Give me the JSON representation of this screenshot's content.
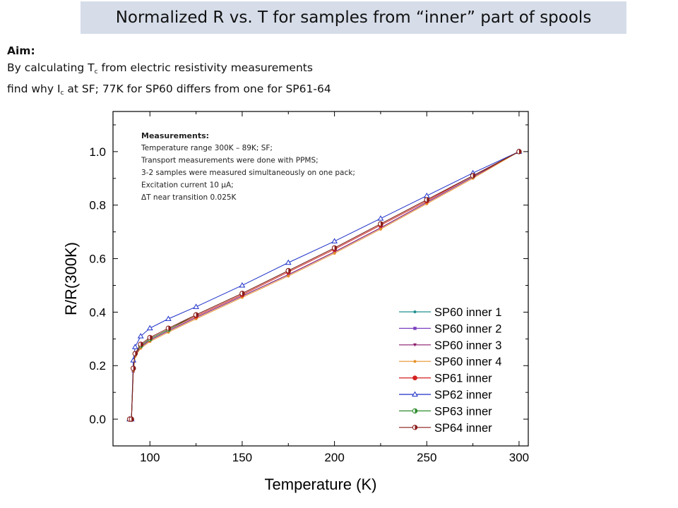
{
  "slide": {
    "title": "Normalized R vs. T for samples from “inner” part of spools"
  },
  "aim": {
    "heading": "Aim:",
    "line1_pre": "By calculating T",
    "line1_sub": "c",
    "line1_post": " from electric resistivity measurements",
    "line2_pre": "find why I",
    "line2_sub": "c",
    "line2_post": " at SF; 77K for SP60 differs from one for SP61-64"
  },
  "notes": {
    "heading": "Measurements:",
    "lines": [
      "Temperature range 300K – 89K; SF;",
      "Transport measurements were done with PPMS;",
      "3-2 samples were measured simultaneously on one pack;",
      "Excitation current 10 μA;",
      "ΔT near transition 0.025K"
    ]
  },
  "chart_data": {
    "type": "line",
    "xlabel": "Temperature (K)",
    "ylabel": "R/R(300K)",
    "xlim": [
      80,
      305
    ],
    "ylim": [
      -0.1,
      1.15
    ],
    "xticks": [
      100,
      150,
      200,
      250,
      300
    ],
    "yticks": [
      0.0,
      0.2,
      0.4,
      0.6,
      0.8,
      1.0
    ],
    "xtick_labels": [
      "100",
      "150",
      "200",
      "250",
      "300"
    ],
    "ytick_labels": [
      "0.0",
      "0.2",
      "0.4",
      "0.6",
      "0.8",
      "1.0"
    ],
    "legend_position": "lower-right",
    "grid": false,
    "x": [
      89,
      90,
      91,
      92,
      95,
      100,
      110,
      125,
      150,
      175,
      200,
      225,
      250,
      275,
      300
    ],
    "series": [
      {
        "name": "SP60 inner 1",
        "color": "#1f8f8f",
        "marker": "dot",
        "values": [
          0.0,
          0.0,
          0.18,
          0.24,
          0.27,
          0.295,
          0.33,
          0.38,
          0.46,
          0.54,
          0.625,
          0.715,
          0.81,
          0.905,
          1.0
        ]
      },
      {
        "name": "SP60 inner 2",
        "color": "#7b3fbf",
        "marker": "square",
        "values": [
          0.0,
          0.0,
          0.18,
          0.24,
          0.27,
          0.295,
          0.33,
          0.38,
          0.46,
          0.54,
          0.625,
          0.715,
          0.81,
          0.905,
          1.0
        ]
      },
      {
        "name": "SP60 inner 3",
        "color": "#8b1a6b",
        "marker": "triangle-down",
        "values": [
          0.0,
          0.0,
          0.18,
          0.24,
          0.27,
          0.295,
          0.33,
          0.38,
          0.46,
          0.54,
          0.625,
          0.715,
          0.81,
          0.905,
          1.0
        ]
      },
      {
        "name": "SP60 inner 4",
        "color": "#e8912a",
        "marker": "dot",
        "values": [
          0.0,
          0.0,
          0.18,
          0.235,
          0.265,
          0.29,
          0.325,
          0.375,
          0.455,
          0.535,
          0.62,
          0.71,
          0.805,
          0.9,
          1.0
        ]
      },
      {
        "name": "SP61 inner",
        "color": "#d42020",
        "marker": "circle",
        "values": [
          0.0,
          0.0,
          0.19,
          0.245,
          0.275,
          0.3,
          0.335,
          0.385,
          0.465,
          0.55,
          0.635,
          0.725,
          0.815,
          0.91,
          1.0
        ]
      },
      {
        "name": "SP62 inner",
        "color": "#1c2fc8",
        "marker": "triangle-open",
        "values": [
          0.0,
          0.0,
          0.22,
          0.27,
          0.31,
          0.34,
          0.375,
          0.42,
          0.5,
          0.585,
          0.665,
          0.75,
          0.835,
          0.92,
          1.0
        ]
      },
      {
        "name": "SP63 inner",
        "color": "#2e8b2e",
        "marker": "half-circle",
        "values": [
          0.0,
          0.0,
          0.19,
          0.245,
          0.275,
          0.3,
          0.335,
          0.39,
          0.47,
          0.555,
          0.64,
          0.73,
          0.82,
          0.91,
          1.0
        ]
      },
      {
        "name": "SP64 inner",
        "color": "#8b1a1a",
        "marker": "half-circle",
        "values": [
          0.0,
          0.0,
          0.19,
          0.245,
          0.28,
          0.305,
          0.34,
          0.39,
          0.47,
          0.555,
          0.64,
          0.73,
          0.82,
          0.91,
          1.0
        ]
      }
    ]
  }
}
